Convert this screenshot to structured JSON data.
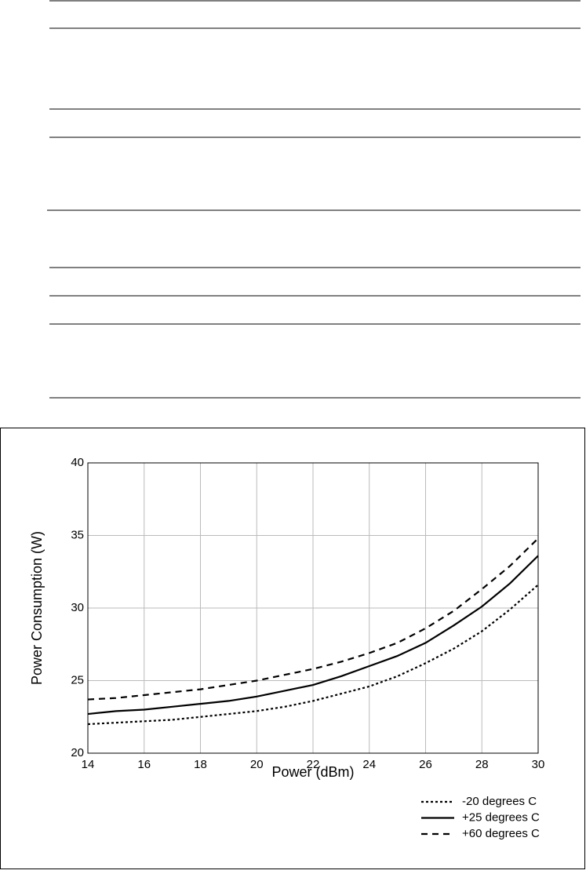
{
  "chart_data": {
    "type": "line",
    "xlabel": "Power (dBm)",
    "ylabel": "Power Consumption (W)",
    "x": [
      14,
      15,
      16,
      17,
      18,
      19,
      20,
      21,
      22,
      23,
      24,
      25,
      26,
      27,
      28,
      29,
      30
    ],
    "series": [
      {
        "name": "-20 degrees C",
        "color": "#000000",
        "dash": "dotted",
        "values": [
          22.0,
          22.1,
          22.2,
          22.3,
          22.5,
          22.7,
          22.9,
          23.2,
          23.6,
          24.1,
          24.6,
          25.3,
          26.2,
          27.2,
          28.4,
          29.9,
          31.6
        ]
      },
      {
        "name": "+25 degrees C",
        "color": "#000000",
        "dash": "solid",
        "values": [
          22.7,
          22.9,
          23.0,
          23.2,
          23.4,
          23.6,
          23.9,
          24.3,
          24.7,
          25.3,
          26.0,
          26.7,
          27.6,
          28.8,
          30.1,
          31.7,
          33.6
        ]
      },
      {
        "name": "+60 degrees C",
        "color": "#000000",
        "dash": "dashed",
        "values": [
          23.7,
          23.8,
          24.0,
          24.2,
          24.4,
          24.7,
          25.0,
          25.4,
          25.8,
          26.3,
          26.9,
          27.6,
          28.6,
          29.8,
          31.3,
          32.9,
          34.8
        ]
      }
    ],
    "xlim": [
      14,
      30
    ],
    "xticks": [
      14,
      16,
      18,
      20,
      22,
      24,
      26,
      28,
      30
    ],
    "ylim": [
      20,
      40
    ],
    "yticks": [
      20,
      25,
      30,
      35,
      40
    ],
    "grid": true,
    "legend": "lower right"
  }
}
